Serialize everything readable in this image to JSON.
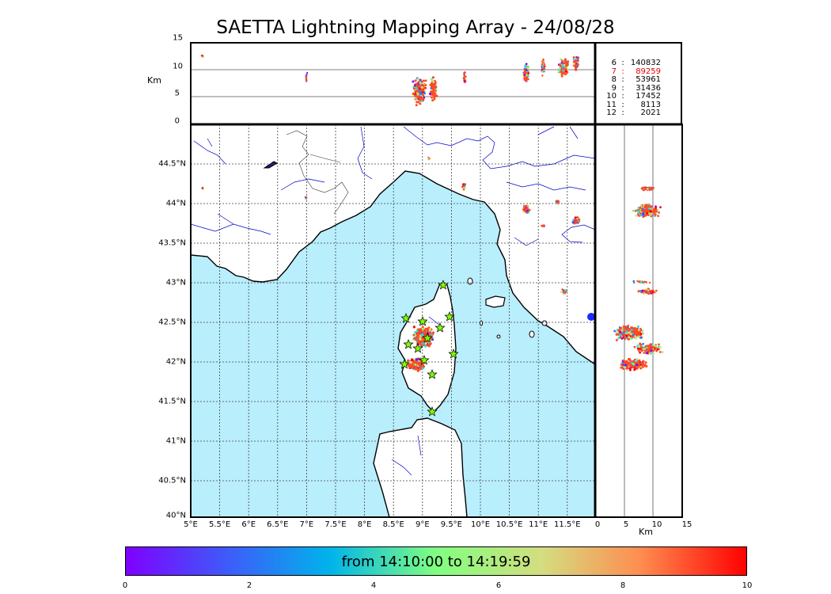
{
  "title": "SAETTA Lightning Mapping Array - 24/08/28",
  "top_panel": {
    "ylabel": "Km",
    "yticks": [
      "15",
      "10",
      "5",
      "0"
    ]
  },
  "right_panel": {
    "xlabel": "Km",
    "xticks": [
      "0",
      "5",
      "10",
      "15"
    ]
  },
  "map": {
    "lon_ticks": [
      "5°E",
      "5.5°E",
      "6°E",
      "6.5°E",
      "7°E",
      "7.5°E",
      "8°E",
      "8.5°E",
      "9°E",
      "9.5°E",
      "10°E",
      "10.5°E",
      "11°E",
      "11.5°E"
    ],
    "lat_ticks": [
      "44.5°N",
      "44°N",
      "43.5°N",
      "43°N",
      "42.5°N",
      "42°N",
      "41.5°N",
      "41°N",
      "40.5°N",
      "40°N"
    ],
    "sea_color": "#b9eefc",
    "land_color": "#ffffff",
    "river_color": "#0000cc",
    "station_marker": "star-icon",
    "station_color": "#7fff00"
  },
  "altitude_counts": [
    {
      "level": "6",
      "sep": ":",
      "count": "140832",
      "color": "#000000"
    },
    {
      "level": "7",
      "sep": ":",
      "count": "89259",
      "color": "#e60000"
    },
    {
      "level": "8",
      "sep": ":",
      "count": "53961",
      "color": "#000000"
    },
    {
      "level": "9",
      "sep": ":",
      "count": "31436",
      "color": "#000000"
    },
    {
      "level": "10",
      "sep": ":",
      "count": "17452",
      "color": "#000000"
    },
    {
      "level": "11",
      "sep": ":",
      "count": "8113",
      "color": "#000000"
    },
    {
      "level": "12",
      "sep": ":",
      "count": "2021",
      "color": "#000000"
    }
  ],
  "colorbar": {
    "label": "from 14:10:00 to 14:19:59",
    "ticks": [
      "0",
      "2",
      "4",
      "6",
      "8",
      "10"
    ],
    "colormap": "rainbow",
    "colors": [
      "#7f00ff",
      "#2c7ef7",
      "#2adddd",
      "#80ff80",
      "#d4dd80",
      "#ff7f40",
      "#ff0000"
    ]
  }
}
